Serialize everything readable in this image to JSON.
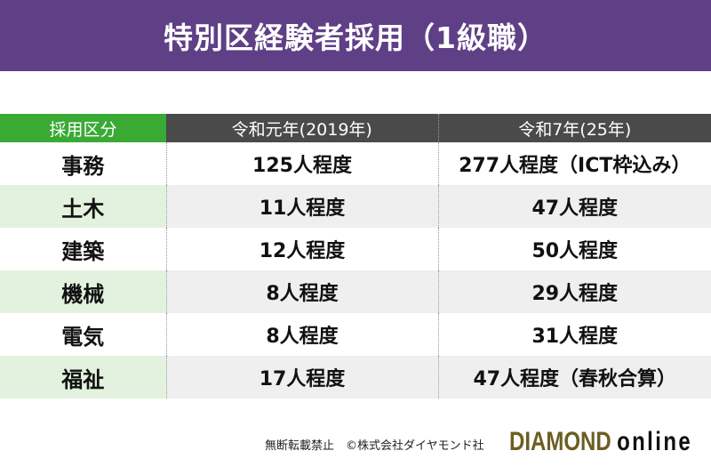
{
  "title": "特別区経験者採用（1級職）",
  "table": {
    "headers": [
      "採用区分",
      "令和元年(2019年)",
      "令和7年(25年)"
    ],
    "rows": [
      [
        "事務",
        "125人程度",
        "277人程度（ICT枠込み）"
      ],
      [
        "土木",
        "11人程度",
        "47人程度"
      ],
      [
        "建築",
        "12人程度",
        "50人程度"
      ],
      [
        "機械",
        "8人程度",
        "29人程度"
      ],
      [
        "電気",
        "8人程度",
        "31人程度"
      ],
      [
        "福祉",
        "17人程度",
        "47人程度（春秋合算）"
      ]
    ]
  },
  "footer": {
    "copyright": "無断転載禁止　©株式会社ダイヤモンド社",
    "logo_main": "DIAMOND",
    "logo_sub": "online"
  }
}
